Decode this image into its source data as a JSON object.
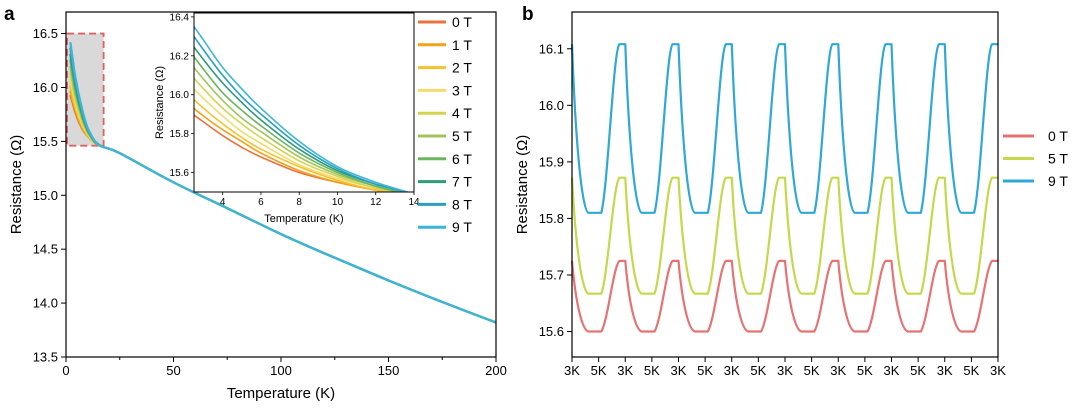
{
  "panels": {
    "a": {
      "letter": "a"
    },
    "b": {
      "letter": "b"
    }
  },
  "chart_data": [
    {
      "id": "a",
      "type": "line",
      "xlabel": "Temperature (K)",
      "ylabel": "Resistance (Ω)",
      "xlim": [
        0,
        200
      ],
      "ylim": [
        13.5,
        16.7
      ],
      "xticks": [
        "0",
        "50",
        "100",
        "150",
        "200"
      ],
      "yticks": [
        "13.5",
        "14.0",
        "14.5",
        "15.0",
        "15.5",
        "16.0",
        "16.5"
      ],
      "grid": false,
      "legend_position": "right of plot",
      "highlight_box": {
        "x": [
          0.5,
          17.5
        ],
        "y": [
          15.46,
          16.5
        ],
        "style": "dashed red, grey fill"
      },
      "series": [
        {
          "name": "0 T",
          "color": "#e8743b",
          "x": [
            2,
            3,
            4,
            5,
            6,
            8,
            10,
            12,
            14,
            17,
            25,
            50,
            75,
            100,
            125,
            150,
            175,
            200
          ],
          "values": [
            15.93,
            15.86,
            15.79,
            15.73,
            15.68,
            15.6,
            15.55,
            15.51,
            15.48,
            15.45,
            15.39,
            15.12,
            14.88,
            14.64,
            14.42,
            14.21,
            14.01,
            13.82
          ]
        },
        {
          "name": "1 T",
          "color": "#f2a11a",
          "x": [
            2,
            3,
            4,
            5,
            6,
            8,
            10,
            12,
            14,
            17,
            25,
            50,
            75,
            100,
            125,
            150,
            175,
            200
          ],
          "values": [
            15.97,
            15.89,
            15.82,
            15.76,
            15.7,
            15.61,
            15.55,
            15.51,
            15.48,
            15.45,
            15.39,
            15.12,
            14.88,
            14.64,
            14.42,
            14.21,
            14.01,
            13.82
          ]
        },
        {
          "name": "2 T",
          "color": "#f6c12c",
          "x": [
            2,
            3,
            4,
            5,
            6,
            8,
            10,
            12,
            14,
            17,
            25,
            50,
            75,
            100,
            125,
            150,
            175,
            200
          ],
          "values": [
            16.02,
            15.93,
            15.85,
            15.78,
            15.72,
            15.63,
            15.56,
            15.51,
            15.48,
            15.45,
            15.39,
            15.12,
            14.88,
            14.64,
            14.42,
            14.21,
            14.01,
            13.82
          ]
        },
        {
          "name": "3 T",
          "color": "#f3dc6a",
          "x": [
            2,
            3,
            4,
            5,
            6,
            8,
            10,
            12,
            14,
            17,
            25,
            50,
            75,
            100,
            125,
            150,
            175,
            200
          ],
          "values": [
            16.08,
            15.98,
            15.89,
            15.81,
            15.75,
            15.64,
            15.57,
            15.52,
            15.48,
            15.45,
            15.39,
            15.12,
            14.88,
            14.64,
            14.42,
            14.21,
            14.01,
            13.82
          ]
        },
        {
          "name": "4 T",
          "color": "#d4d44e",
          "x": [
            2,
            3,
            4,
            5,
            6,
            8,
            10,
            12,
            14,
            17,
            25,
            50,
            75,
            100,
            125,
            150,
            175,
            200
          ],
          "values": [
            16.14,
            16.03,
            15.93,
            15.85,
            15.78,
            15.66,
            15.58,
            15.52,
            15.48,
            15.45,
            15.39,
            15.12,
            14.88,
            14.64,
            14.42,
            14.21,
            14.01,
            13.82
          ]
        },
        {
          "name": "5 T",
          "color": "#a3c55c",
          "x": [
            2,
            3,
            4,
            5,
            6,
            8,
            10,
            12,
            14,
            17,
            25,
            50,
            75,
            100,
            125,
            150,
            175,
            200
          ],
          "values": [
            16.2,
            16.08,
            15.97,
            15.88,
            15.81,
            15.68,
            15.59,
            15.53,
            15.48,
            15.45,
            15.39,
            15.12,
            14.88,
            14.64,
            14.42,
            14.21,
            14.01,
            13.82
          ]
        },
        {
          "name": "6 T",
          "color": "#6cb55c",
          "x": [
            2,
            3,
            4,
            5,
            6,
            8,
            10,
            12,
            14,
            17,
            25,
            50,
            75,
            100,
            125,
            150,
            175,
            200
          ],
          "values": [
            16.26,
            16.13,
            16.01,
            15.92,
            15.84,
            15.7,
            15.6,
            15.53,
            15.48,
            15.45,
            15.39,
            15.12,
            14.88,
            14.64,
            14.42,
            14.21,
            14.01,
            13.82
          ]
        },
        {
          "name": "7 T",
          "color": "#2f9a7a",
          "x": [
            2,
            3,
            4,
            5,
            6,
            8,
            10,
            12,
            14,
            17,
            25,
            50,
            75,
            100,
            125,
            150,
            175,
            200
          ],
          "values": [
            16.31,
            16.18,
            16.06,
            15.96,
            15.87,
            15.72,
            15.61,
            15.54,
            15.49,
            15.45,
            15.39,
            15.12,
            14.88,
            14.64,
            14.42,
            14.21,
            14.01,
            13.82
          ]
        },
        {
          "name": "8 T",
          "color": "#2a9fc2",
          "x": [
            2,
            3,
            4,
            5,
            6,
            8,
            10,
            12,
            14,
            17,
            25,
            50,
            75,
            100,
            125,
            150,
            175,
            200
          ],
          "values": [
            16.37,
            16.23,
            16.1,
            15.99,
            15.9,
            15.74,
            15.62,
            15.54,
            15.49,
            15.45,
            15.39,
            15.12,
            14.88,
            14.64,
            14.42,
            14.21,
            14.01,
            13.82
          ]
        },
        {
          "name": "9 T",
          "color": "#3cb6d8",
          "x": [
            2,
            3,
            4,
            5,
            6,
            8,
            10,
            12,
            14,
            17,
            25,
            50,
            75,
            100,
            125,
            150,
            175,
            200
          ],
          "values": [
            16.42,
            16.28,
            16.14,
            16.03,
            15.93,
            15.76,
            15.63,
            15.55,
            15.49,
            15.45,
            15.39,
            15.12,
            14.88,
            14.64,
            14.42,
            14.21,
            14.01,
            13.82
          ]
        }
      ],
      "inset": {
        "xlabel": "Temperature (K)",
        "ylabel": "Resistance (Ω)",
        "xlim": [
          2.5,
          14
        ],
        "ylim": [
          15.5,
          16.42
        ],
        "xticks": [
          "4",
          "6",
          "8",
          "10",
          "12",
          "14"
        ],
        "yticks": [
          "15.6",
          "15.8",
          "16.0",
          "16.2",
          "16.4"
        ]
      }
    },
    {
      "id": "b",
      "type": "line",
      "xlabel": "",
      "ylabel": "Resistance (Ω)",
      "ylim": [
        15.555,
        16.165
      ],
      "yticks": [
        "15.6",
        "15.7",
        "15.8",
        "15.9",
        "16.0",
        "16.1"
      ],
      "categories": [
        "3K",
        "5K",
        "3K",
        "5K",
        "3K",
        "5K",
        "3K",
        "5K",
        "3K",
        "5K",
        "3K",
        "5K",
        "3K",
        "5K",
        "3K",
        "5K",
        "3K"
      ],
      "grid": false,
      "legend_position": "right of plot",
      "series": [
        {
          "name": "0 T",
          "color": "#e57373",
          "low": 15.6,
          "high": 15.725
        },
        {
          "name": "5 T",
          "color": "#c5d84a",
          "low": 15.667,
          "high": 15.872
        },
        {
          "name": "9 T",
          "color": "#2fa8d5",
          "low": 15.81,
          "high": 16.108
        }
      ]
    }
  ]
}
